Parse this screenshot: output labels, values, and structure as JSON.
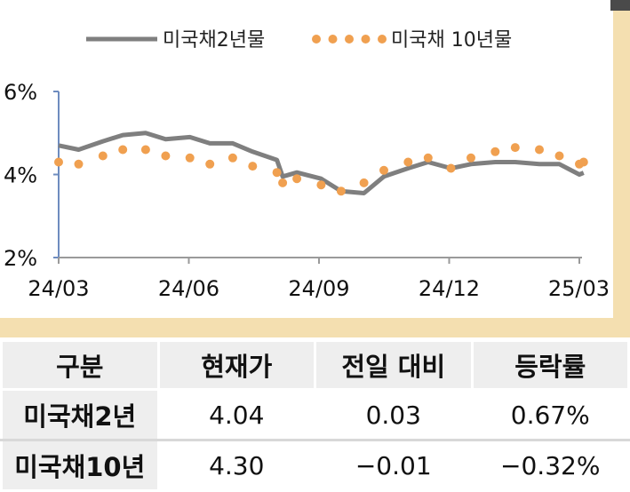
{
  "chart_data": {
    "type": "line",
    "title": "",
    "xlabel": "",
    "ylabel": "",
    "ylim": [
      2,
      6
    ],
    "y_ticks": [
      "2%",
      "4%",
      "6%"
    ],
    "x_ticks": [
      "24/03",
      "24/06",
      "24/09",
      "24/12",
      "25/03"
    ],
    "legend_position": "top",
    "series": [
      {
        "name": "미국채2년물",
        "style": "solid-line",
        "color": "#7f7f7f",
        "x": [
          "2024-03-01",
          "2024-03-15",
          "2024-04-01",
          "2024-04-15",
          "2024-05-01",
          "2024-05-15",
          "2024-06-01",
          "2024-06-15",
          "2024-07-01",
          "2024-07-15",
          "2024-08-01",
          "2024-08-05",
          "2024-08-15",
          "2024-09-01",
          "2024-09-15",
          "2024-10-01",
          "2024-10-15",
          "2024-11-01",
          "2024-11-15",
          "2024-12-01",
          "2024-12-15",
          "2025-01-01",
          "2025-01-15",
          "2025-02-01",
          "2025-02-15",
          "2025-03-01",
          "2025-03-04"
        ],
        "values": [
          4.7,
          4.6,
          4.8,
          4.95,
          5.0,
          4.85,
          4.9,
          4.75,
          4.75,
          4.55,
          4.35,
          3.95,
          4.05,
          3.9,
          3.6,
          3.55,
          3.95,
          4.15,
          4.3,
          4.15,
          4.25,
          4.3,
          4.3,
          4.25,
          4.25,
          4.0,
          4.04
        ]
      },
      {
        "name": "미국채 10년물",
        "style": "dotted",
        "color": "#f0a050",
        "x": [
          "2024-03-01",
          "2024-03-15",
          "2024-04-01",
          "2024-04-15",
          "2024-05-01",
          "2024-05-15",
          "2024-06-01",
          "2024-06-15",
          "2024-07-01",
          "2024-07-15",
          "2024-08-01",
          "2024-08-05",
          "2024-08-15",
          "2024-09-01",
          "2024-09-15",
          "2024-10-01",
          "2024-10-15",
          "2024-11-01",
          "2024-11-15",
          "2024-12-01",
          "2024-12-15",
          "2025-01-01",
          "2025-01-15",
          "2025-02-01",
          "2025-02-15",
          "2025-03-01",
          "2025-03-04"
        ],
        "values": [
          4.3,
          4.25,
          4.45,
          4.6,
          4.6,
          4.45,
          4.4,
          4.25,
          4.4,
          4.2,
          4.05,
          3.8,
          3.9,
          3.75,
          3.6,
          3.8,
          4.1,
          4.3,
          4.4,
          4.15,
          4.4,
          4.55,
          4.65,
          4.6,
          4.45,
          4.25,
          4.3
        ]
      }
    ]
  },
  "table": {
    "headers": [
      "구분",
      "현재가",
      "전일 대비",
      "등락률"
    ],
    "rows": [
      [
        "미국채2년",
        "4.04",
        "0.03",
        "0.67%"
      ],
      [
        "미국채10년",
        "4.30",
        "−0.01",
        "−0.32%"
      ]
    ]
  }
}
